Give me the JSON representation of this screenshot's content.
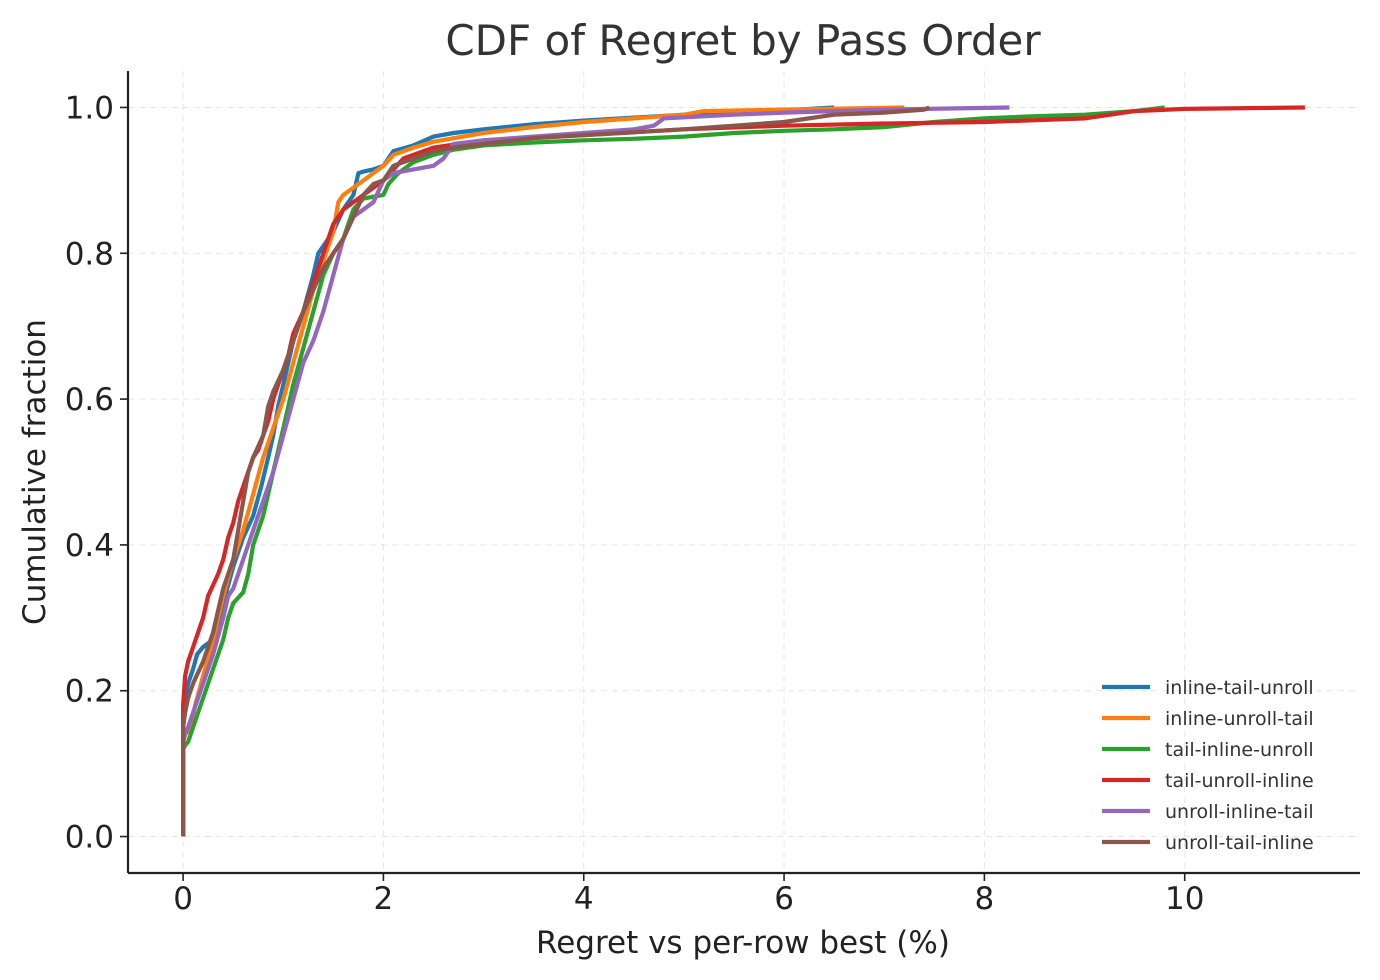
{
  "chart_data": {
    "type": "line",
    "title": "CDF of Regret by Pass Order",
    "xlabel": "Regret vs per-row best (%)",
    "ylabel": "Cumulative fraction",
    "xlim": [
      -0.55,
      11.75
    ],
    "ylim": [
      -0.05,
      1.05
    ],
    "xticks": [
      0,
      2,
      4,
      6,
      8,
      10
    ],
    "xtick_labels": [
      "0",
      "2",
      "4",
      "6",
      "8",
      "10"
    ],
    "yticks": [
      0.0,
      0.2,
      0.4,
      0.6,
      0.8,
      1.0
    ],
    "ytick_labels": [
      "0.0",
      "0.2",
      "0.4",
      "0.6",
      "0.8",
      "1.0"
    ],
    "grid": true,
    "legend_position": "lower-right",
    "series": [
      {
        "name": "inline-tail-unroll",
        "color": "#1f77b4",
        "x": [
          0,
          0,
          0.02,
          0.05,
          0.1,
          0.14,
          0.2,
          0.3,
          0.38,
          0.42,
          0.5,
          0.6,
          0.7,
          0.78,
          0.85,
          0.9,
          0.95,
          1.0,
          1.05,
          1.1,
          1.15,
          1.2,
          1.3,
          1.35,
          1.4,
          1.5,
          1.6,
          1.7,
          1.75,
          1.8,
          1.9,
          2.0,
          2.1,
          2.3,
          2.5,
          2.7,
          3.0,
          3.5,
          4.0,
          5.0,
          5.5,
          6.0,
          6.5
        ],
        "y": [
          0,
          0.15,
          0.19,
          0.21,
          0.23,
          0.25,
          0.26,
          0.27,
          0.3,
          0.33,
          0.37,
          0.41,
          0.44,
          0.48,
          0.52,
          0.55,
          0.59,
          0.62,
          0.65,
          0.68,
          0.7,
          0.72,
          0.77,
          0.8,
          0.81,
          0.83,
          0.86,
          0.88,
          0.91,
          0.912,
          0.915,
          0.92,
          0.94,
          0.948,
          0.96,
          0.965,
          0.97,
          0.977,
          0.982,
          0.99,
          0.993,
          0.996,
          1.0
        ]
      },
      {
        "name": "inline-unroll-tail",
        "color": "#ff7f0e",
        "x": [
          0,
          0,
          0.02,
          0.08,
          0.12,
          0.2,
          0.3,
          0.4,
          0.5,
          0.6,
          0.7,
          0.8,
          0.9,
          1.0,
          1.1,
          1.2,
          1.3,
          1.4,
          1.5,
          1.55,
          1.6,
          1.7,
          1.8,
          1.9,
          2.0,
          2.1,
          2.3,
          2.5,
          3.0,
          3.5,
          4.0,
          4.5,
          5.0,
          5.2,
          6.0,
          7.2
        ],
        "y": [
          0,
          0.13,
          0.14,
          0.15,
          0.18,
          0.22,
          0.27,
          0.33,
          0.38,
          0.42,
          0.47,
          0.52,
          0.56,
          0.6,
          0.65,
          0.7,
          0.75,
          0.79,
          0.83,
          0.87,
          0.88,
          0.89,
          0.9,
          0.91,
          0.92,
          0.935,
          0.945,
          0.953,
          0.965,
          0.973,
          0.98,
          0.985,
          0.99,
          0.995,
          0.997,
          1.0
        ]
      },
      {
        "name": "tail-inline-unroll",
        "color": "#2ca02c",
        "x": [
          0,
          0,
          0.02,
          0.05,
          0.1,
          0.2,
          0.3,
          0.4,
          0.45,
          0.5,
          0.6,
          0.65,
          0.7,
          0.8,
          0.9,
          1.0,
          1.1,
          1.2,
          1.3,
          1.4,
          1.5,
          1.6,
          1.7,
          1.8,
          2.0,
          2.05,
          2.15,
          2.3,
          2.5,
          2.7,
          3.0,
          3.5,
          4.0,
          4.5,
          5.0,
          5.5,
          6.0,
          6.5,
          7.0,
          7.5,
          8.0,
          8.5,
          9.0,
          9.5,
          9.8
        ],
        "y": [
          0,
          0.12,
          0.125,
          0.13,
          0.15,
          0.19,
          0.23,
          0.27,
          0.3,
          0.32,
          0.335,
          0.36,
          0.4,
          0.44,
          0.5,
          0.56,
          0.62,
          0.67,
          0.72,
          0.77,
          0.8,
          0.82,
          0.86,
          0.875,
          0.88,
          0.895,
          0.91,
          0.925,
          0.935,
          0.942,
          0.948,
          0.952,
          0.955,
          0.957,
          0.96,
          0.965,
          0.968,
          0.97,
          0.973,
          0.98,
          0.985,
          0.988,
          0.99,
          0.995,
          1.0
        ]
      },
      {
        "name": "tail-unroll-inline",
        "color": "#d62728",
        "x": [
          0,
          0,
          0.02,
          0.05,
          0.1,
          0.15,
          0.2,
          0.25,
          0.3,
          0.35,
          0.4,
          0.45,
          0.5,
          0.55,
          0.6,
          0.65,
          0.7,
          0.75,
          0.8,
          0.85,
          0.9,
          0.95,
          1.0,
          1.05,
          1.1,
          1.2,
          1.3,
          1.4,
          1.5,
          1.6,
          1.7,
          1.8,
          2.0,
          2.2,
          2.5,
          3.0,
          4.0,
          5.0,
          6.0,
          7.0,
          8.0,
          9.0,
          9.5,
          10.0,
          11.2
        ],
        "y": [
          0,
          0.18,
          0.22,
          0.24,
          0.26,
          0.28,
          0.3,
          0.33,
          0.345,
          0.36,
          0.38,
          0.41,
          0.43,
          0.46,
          0.48,
          0.5,
          0.52,
          0.53,
          0.55,
          0.57,
          0.6,
          0.62,
          0.64,
          0.66,
          0.69,
          0.72,
          0.76,
          0.8,
          0.84,
          0.86,
          0.87,
          0.88,
          0.9,
          0.93,
          0.945,
          0.955,
          0.962,
          0.97,
          0.975,
          0.978,
          0.98,
          0.985,
          0.995,
          0.998,
          1.0
        ]
      },
      {
        "name": "unroll-inline-tail",
        "color": "#9467bd",
        "x": [
          0,
          0,
          0.02,
          0.05,
          0.1,
          0.15,
          0.2,
          0.3,
          0.4,
          0.45,
          0.5,
          0.6,
          0.7,
          0.8,
          0.9,
          1.0,
          1.1,
          1.2,
          1.3,
          1.4,
          1.5,
          1.6,
          1.7,
          1.8,
          1.9,
          2.0,
          2.1,
          2.3,
          2.5,
          2.6,
          2.7,
          3.0,
          3.5,
          4.0,
          4.5,
          4.7,
          4.8,
          5.5,
          6.0,
          7.0,
          8.25
        ],
        "y": [
          0,
          0.13,
          0.14,
          0.15,
          0.17,
          0.19,
          0.21,
          0.25,
          0.3,
          0.33,
          0.34,
          0.38,
          0.42,
          0.46,
          0.5,
          0.55,
          0.6,
          0.65,
          0.68,
          0.72,
          0.77,
          0.82,
          0.85,
          0.86,
          0.87,
          0.9,
          0.91,
          0.915,
          0.92,
          0.93,
          0.95,
          0.955,
          0.96,
          0.965,
          0.97,
          0.975,
          0.985,
          0.99,
          0.993,
          0.997,
          1.0
        ]
      },
      {
        "name": "unroll-tail-inline",
        "color": "#8c564b",
        "x": [
          0,
          0,
          0.02,
          0.05,
          0.1,
          0.2,
          0.3,
          0.35,
          0.4,
          0.45,
          0.5,
          0.55,
          0.6,
          0.65,
          0.7,
          0.8,
          0.85,
          0.9,
          1.0,
          1.1,
          1.2,
          1.3,
          1.4,
          1.5,
          1.6,
          1.7,
          1.8,
          1.9,
          2.0,
          2.1,
          2.3,
          2.5,
          2.7,
          3.0,
          3.5,
          4.0,
          5.0,
          5.5,
          6.0,
          6.5,
          7.0,
          7.4,
          7.45
        ],
        "y": [
          0,
          0.15,
          0.17,
          0.19,
          0.21,
          0.24,
          0.28,
          0.31,
          0.34,
          0.36,
          0.38,
          0.42,
          0.46,
          0.5,
          0.52,
          0.55,
          0.59,
          0.61,
          0.64,
          0.68,
          0.72,
          0.75,
          0.78,
          0.8,
          0.82,
          0.85,
          0.88,
          0.895,
          0.9,
          0.92,
          0.93,
          0.94,
          0.945,
          0.95,
          0.958,
          0.962,
          0.97,
          0.975,
          0.98,
          0.99,
          0.993,
          0.997,
          1.0
        ]
      }
    ]
  }
}
